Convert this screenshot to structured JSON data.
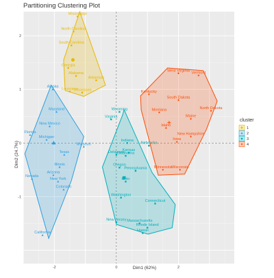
{
  "chart_data": {
    "type": "scatter",
    "title": "Partitioning Clustering Plot",
    "xlabel": "Dim1 (62%)",
    "ylabel": "Dim2 (24.7%)",
    "xlim": [
      -3.0,
      3.8
    ],
    "ylim": [
      -2.25,
      2.45
    ],
    "x_ticks": [
      -2,
      0,
      2
    ],
    "y_ticks": [
      -1,
      0,
      1,
      2
    ],
    "grid": true,
    "legend": {
      "title": "cluster",
      "position": "right",
      "entries": [
        {
          "label": "1",
          "color": "#E7B800",
          "shape": "circle"
        },
        {
          "label": "2",
          "color": "#2E9FDF",
          "shape": "triangle"
        },
        {
          "label": "3",
          "color": "#00AFBB",
          "shape": "square"
        },
        {
          "label": "4",
          "color": "#FC4E07",
          "shape": "cross"
        }
      ]
    },
    "clusters": [
      {
        "id": "cluster-1",
        "color": "#E7B800",
        "center": [
          -1.4,
          1.55
        ],
        "hull": [
          [
            -1.18,
            2.45
          ],
          [
            -0.35,
            1.08
          ],
          [
            -1.05,
            0.87
          ],
          [
            -1.65,
            0.98
          ],
          [
            -1.7,
            1.55
          ]
        ],
        "points": [
          {
            "label": "Mississippi",
            "x": -1.25,
            "y": 2.36
          },
          {
            "label": "North Carolina",
            "x": -1.38,
            "y": 2.08
          },
          {
            "label": "South Carolina",
            "x": -1.45,
            "y": 1.82
          },
          {
            "label": "Georgia",
            "x": -1.55,
            "y": 1.4
          },
          {
            "label": "Alabama",
            "x": -1.3,
            "y": 1.25
          },
          {
            "label": "Arkansas",
            "x": -0.65,
            "y": 1.17
          },
          {
            "label": "Louisiana",
            "x": -1.5,
            "y": 0.96
          },
          {
            "label": "Tennessee",
            "x": -1.1,
            "y": 0.94
          }
        ]
      },
      {
        "id": "cluster-2",
        "color": "#2E9FDF",
        "center": [
          -2.02,
          0.0
        ],
        "hull": [
          [
            -2.1,
            1.08
          ],
          [
            -1.05,
            0.12
          ],
          [
            -1.45,
            -0.7
          ],
          [
            -2.18,
            -1.78
          ],
          [
            -2.95,
            -0.2
          ]
        ],
        "points": [
          {
            "label": "Alaska",
            "x": -2.05,
            "y": 1.0
          },
          {
            "label": "Maryland",
            "x": -1.93,
            "y": 0.58
          },
          {
            "label": "New Mexico",
            "x": -2.15,
            "y": 0.31
          },
          {
            "label": "Florida",
            "x": -2.78,
            "y": 0.15
          },
          {
            "label": "Michigan",
            "x": -2.25,
            "y": 0.06
          },
          {
            "label": "Missouri",
            "x": -1.05,
            "y": -0.07
          },
          {
            "label": "Texas",
            "x": -1.68,
            "y": -0.22
          },
          {
            "label": "Illinois",
            "x": -1.83,
            "y": -0.45
          },
          {
            "label": "Nevada",
            "x": -2.72,
            "y": -0.67
          },
          {
            "label": "Arizona",
            "x": -2.03,
            "y": -0.6
          },
          {
            "label": "New York",
            "x": -1.88,
            "y": -0.72
          },
          {
            "label": "Colorado",
            "x": -1.7,
            "y": -0.87
          },
          {
            "label": "California",
            "x": -2.38,
            "y": -1.72
          }
        ]
      },
      {
        "id": "cluster-3",
        "color": "#00AFBB",
        "center": [
          0.25,
          -0.65
        ],
        "hull": [
          [
            0.25,
            0.62
          ],
          [
            1.15,
            -0.55
          ],
          [
            1.9,
            -1.15
          ],
          [
            1.8,
            -1.58
          ],
          [
            1.02,
            -1.7
          ],
          [
            0.0,
            -1.52
          ],
          [
            -0.45,
            -0.45
          ],
          [
            0.2,
            0.52
          ]
        ],
        "points": [
          {
            "label": "Wyoming",
            "x": 0.1,
            "y": 0.58
          },
          {
            "label": "Virginia",
            "x": -0.17,
            "y": 0.44
          },
          {
            "label": "Indiana",
            "x": 0.35,
            "y": 0.0
          },
          {
            "label": "Nebraska",
            "x": 1.05,
            "y": -0.05
          },
          {
            "label": "Delaware",
            "x": 0.0,
            "y": -0.22
          },
          {
            "label": "Kansas",
            "x": 0.4,
            "y": -0.18
          },
          {
            "label": "Oklahoma",
            "x": 0.3,
            "y": -0.24
          },
          {
            "label": "Oregon",
            "x": 0.1,
            "y": -0.46
          },
          {
            "label": "Pennsylvania",
            "x": 0.62,
            "y": -0.52
          },
          {
            "label": "Ohio",
            "x": 0.3,
            "y": -0.72
          },
          {
            "label": "Washington",
            "x": 0.15,
            "y": -1.02
          },
          {
            "label": "Connecticut",
            "x": 1.25,
            "y": -1.13
          },
          {
            "label": "New Jersey",
            "x": 0.0,
            "y": -1.48
          },
          {
            "label": "Massachusetts",
            "x": 0.75,
            "y": -1.5
          },
          {
            "label": "Rhode Island",
            "x": 1.0,
            "y": -1.58
          },
          {
            "label": "Hawaii",
            "x": 0.85,
            "y": -1.68
          }
        ]
      },
      {
        "id": "cluster-4",
        "color": "#FC4E07",
        "center": [
          1.7,
          0.38
        ],
        "hull": [
          [
            1.65,
            1.4
          ],
          [
            2.8,
            1.35
          ],
          [
            3.25,
            0.78
          ],
          [
            2.9,
            0.25
          ],
          [
            2.2,
            -0.58
          ],
          [
            1.35,
            -0.6
          ],
          [
            0.8,
            0.62
          ],
          [
            0.78,
            0.88
          ]
        ],
        "points": [
          {
            "label": "West Virginia",
            "x": 2.0,
            "y": 1.3
          },
          {
            "label": "Vermont",
            "x": 2.65,
            "y": 1.26
          },
          {
            "label": "Kentucky",
            "x": 1.05,
            "y": 0.91
          },
          {
            "label": "South Dakota",
            "x": 2.0,
            "y": 0.8
          },
          {
            "label": "North Dakota",
            "x": 3.05,
            "y": 0.6
          },
          {
            "label": "Montana",
            "x": 1.38,
            "y": 0.57
          },
          {
            "label": "Maine",
            "x": 2.4,
            "y": 0.45
          },
          {
            "label": "Idaho",
            "x": 1.6,
            "y": 0.28
          },
          {
            "label": "New Hampshire",
            "x": 2.4,
            "y": 0.12
          },
          {
            "label": "Iowa",
            "x": 1.95,
            "y": 0.02
          },
          {
            "label": "Minnesota",
            "x": 1.5,
            "y": -0.5
          },
          {
            "label": "Wisconsin",
            "x": 2.05,
            "y": -0.5
          }
        ]
      }
    ]
  }
}
